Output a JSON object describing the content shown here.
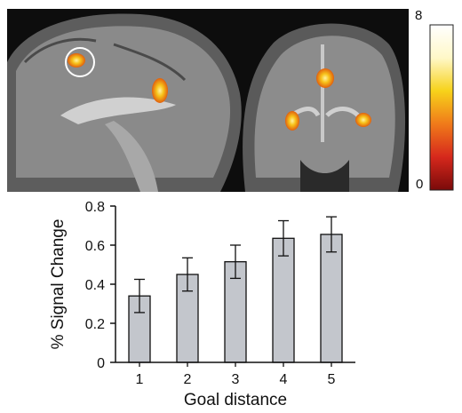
{
  "colorbar": {
    "max_label": "8",
    "min_label": "0",
    "colors": [
      "#7a0a0a",
      "#d6281c",
      "#f07a1a",
      "#f7d21a",
      "#fff8c8",
      "#ffffff"
    ]
  },
  "chart_data": {
    "type": "bar",
    "categories": [
      "1",
      "2",
      "3",
      "4",
      "5"
    ],
    "values": [
      0.34,
      0.45,
      0.515,
      0.635,
      0.655
    ],
    "error": [
      0.085,
      0.085,
      0.085,
      0.09,
      0.09
    ],
    "xlabel": "Goal distance",
    "ylabel": "% Signal Change",
    "ylim": [
      0,
      0.8
    ],
    "yticks": [
      "0",
      "0.2",
      "0.4",
      "0.6",
      "0.8"
    ],
    "grid": false,
    "bar_color": "#c3c6cc"
  }
}
